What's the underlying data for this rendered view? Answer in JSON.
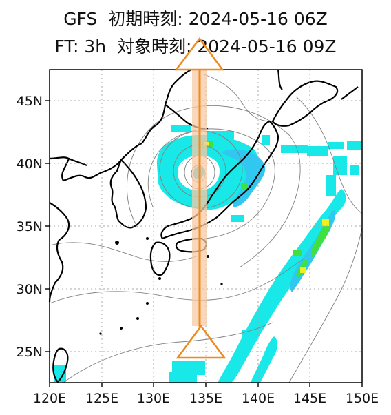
{
  "header": {
    "line1": "GFS  初期時刻: 2024-05-16 06Z",
    "line2": "FT: 3h  対象時刻: 2024-05-16 09Z"
  },
  "axes": {
    "x_ticks": [
      "120E",
      "125E",
      "130E",
      "135E",
      "140E",
      "145E",
      "150E"
    ],
    "y_ticks": [
      "45N",
      "40N",
      "35N",
      "30N",
      "25N"
    ],
    "lon_range": [
      120,
      150
    ],
    "lat_range": [
      22.5,
      47.5
    ]
  },
  "colors": {
    "precip_light": "#18e8e8",
    "precip_mid": "#30c8f0",
    "precip_moderate": "#40e040",
    "precip_heavy": "#f0f020",
    "cross_section": "#f08a1e",
    "band": "#f7c9a5"
  },
  "overlay": {
    "cross_section_lon": 135,
    "lat_start": 25,
    "lat_end": 47.5
  }
}
